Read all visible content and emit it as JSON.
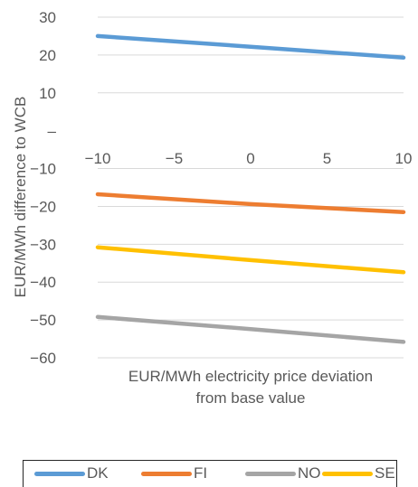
{
  "chart_data": {
    "type": "line",
    "title": "",
    "xlabel": "EUR/MWh electricity price deviation\nfrom base value",
    "ylabel": "EUR/MWh difference to WCB",
    "x": [
      -10,
      10
    ],
    "xlim": [
      -10,
      10
    ],
    "ylim": [
      -60,
      30
    ],
    "x_tick_labels": [
      "−10",
      "−5",
      "0",
      "5",
      "10"
    ],
    "y_tick_labels": [
      "30",
      "20",
      "10",
      "–",
      "−10",
      "−20",
      "−30",
      "−40",
      "−50",
      "−60"
    ],
    "grid": true,
    "legend_position": "bottom",
    "series": [
      {
        "name": "DK",
        "color": "#5B9BD5",
        "x": [
          -10,
          0,
          10
        ],
        "values": [
          25,
          22.2,
          19.3
        ]
      },
      {
        "name": "FI",
        "color": "#ED7D31",
        "x": [
          -10,
          0,
          10
        ],
        "values": [
          -16.8,
          -19.4,
          -21.5
        ]
      },
      {
        "name": "NO",
        "color": "#A5A5A5",
        "x": [
          -10,
          0,
          10
        ],
        "values": [
          -49.2,
          -52.4,
          -55.8
        ]
      },
      {
        "name": "SE",
        "color": "#FFC000",
        "x": [
          -10,
          0,
          10
        ],
        "values": [
          -30.8,
          -34.2,
          -37.4
        ]
      }
    ]
  }
}
